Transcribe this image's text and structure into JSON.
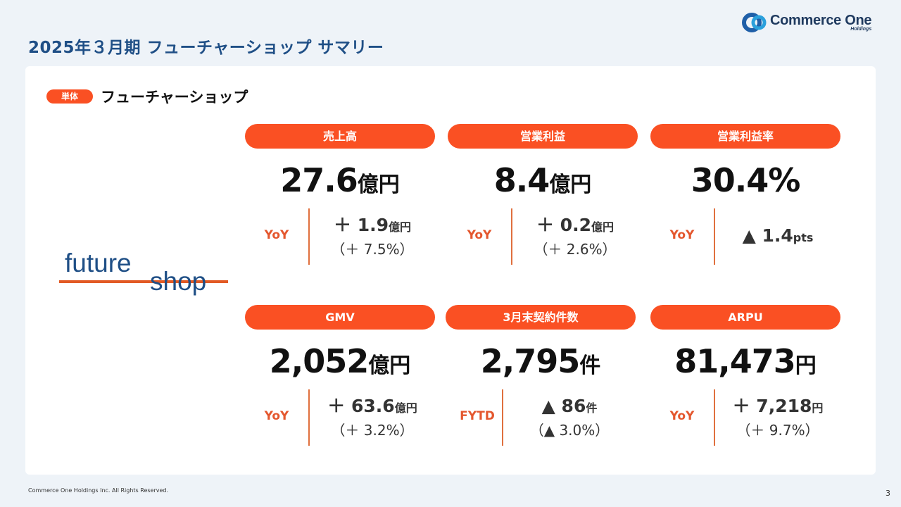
{
  "page": {
    "title": "2025年３月期 フューチャーショップ サマリー"
  },
  "logo": {
    "name": "Commerce One",
    "sub": "Holdings"
  },
  "section": {
    "badge": "単体",
    "title": "フューチャーショップ"
  },
  "brand": {
    "line1": "future",
    "line2": "shop"
  },
  "colors": {
    "accent": "#fa5023",
    "title": "#1f4f86",
    "background": "#eef3f8"
  },
  "metrics": [
    {
      "label": "売上高",
      "value": "27.6",
      "unit": "億円",
      "cmp_label": "YoY",
      "cmp_value": "＋ 1.9",
      "cmp_unit": "億円",
      "cmp_sub": "（＋ 7.5%）"
    },
    {
      "label": "営業利益",
      "value": "8.4",
      "unit": "億円",
      "cmp_label": "YoY",
      "cmp_value": "＋ 0.2",
      "cmp_unit": "億円",
      "cmp_sub": "（＋ 2.6%）"
    },
    {
      "label": "営業利益率",
      "value": "30.4%",
      "unit": "",
      "cmp_label": "YoY",
      "cmp_value": "▲ 1.4",
      "cmp_unit": "pts",
      "cmp_sub": ""
    },
    {
      "label": "GMV",
      "value": "2,052",
      "unit": "億円",
      "cmp_label": "YoY",
      "cmp_value": "＋ 63.6",
      "cmp_unit": "億円",
      "cmp_sub": "（＋ 3.2%）"
    },
    {
      "label": "3月末契約件数",
      "value": "2,795",
      "unit": "件",
      "cmp_label": "FYTD",
      "cmp_value": "▲ 86",
      "cmp_unit": "件",
      "cmp_sub": "（▲ 3.0%）"
    },
    {
      "label": "ARPU",
      "value": "81,473",
      "unit": "円",
      "cmp_label": "YoY",
      "cmp_value": "＋ 7,218",
      "cmp_unit": "円",
      "cmp_sub": "（＋ 9.7%）"
    }
  ],
  "footer": {
    "copyright": "Commerce One Holdings Inc. All Rights Reserved.",
    "page_number": "3"
  }
}
